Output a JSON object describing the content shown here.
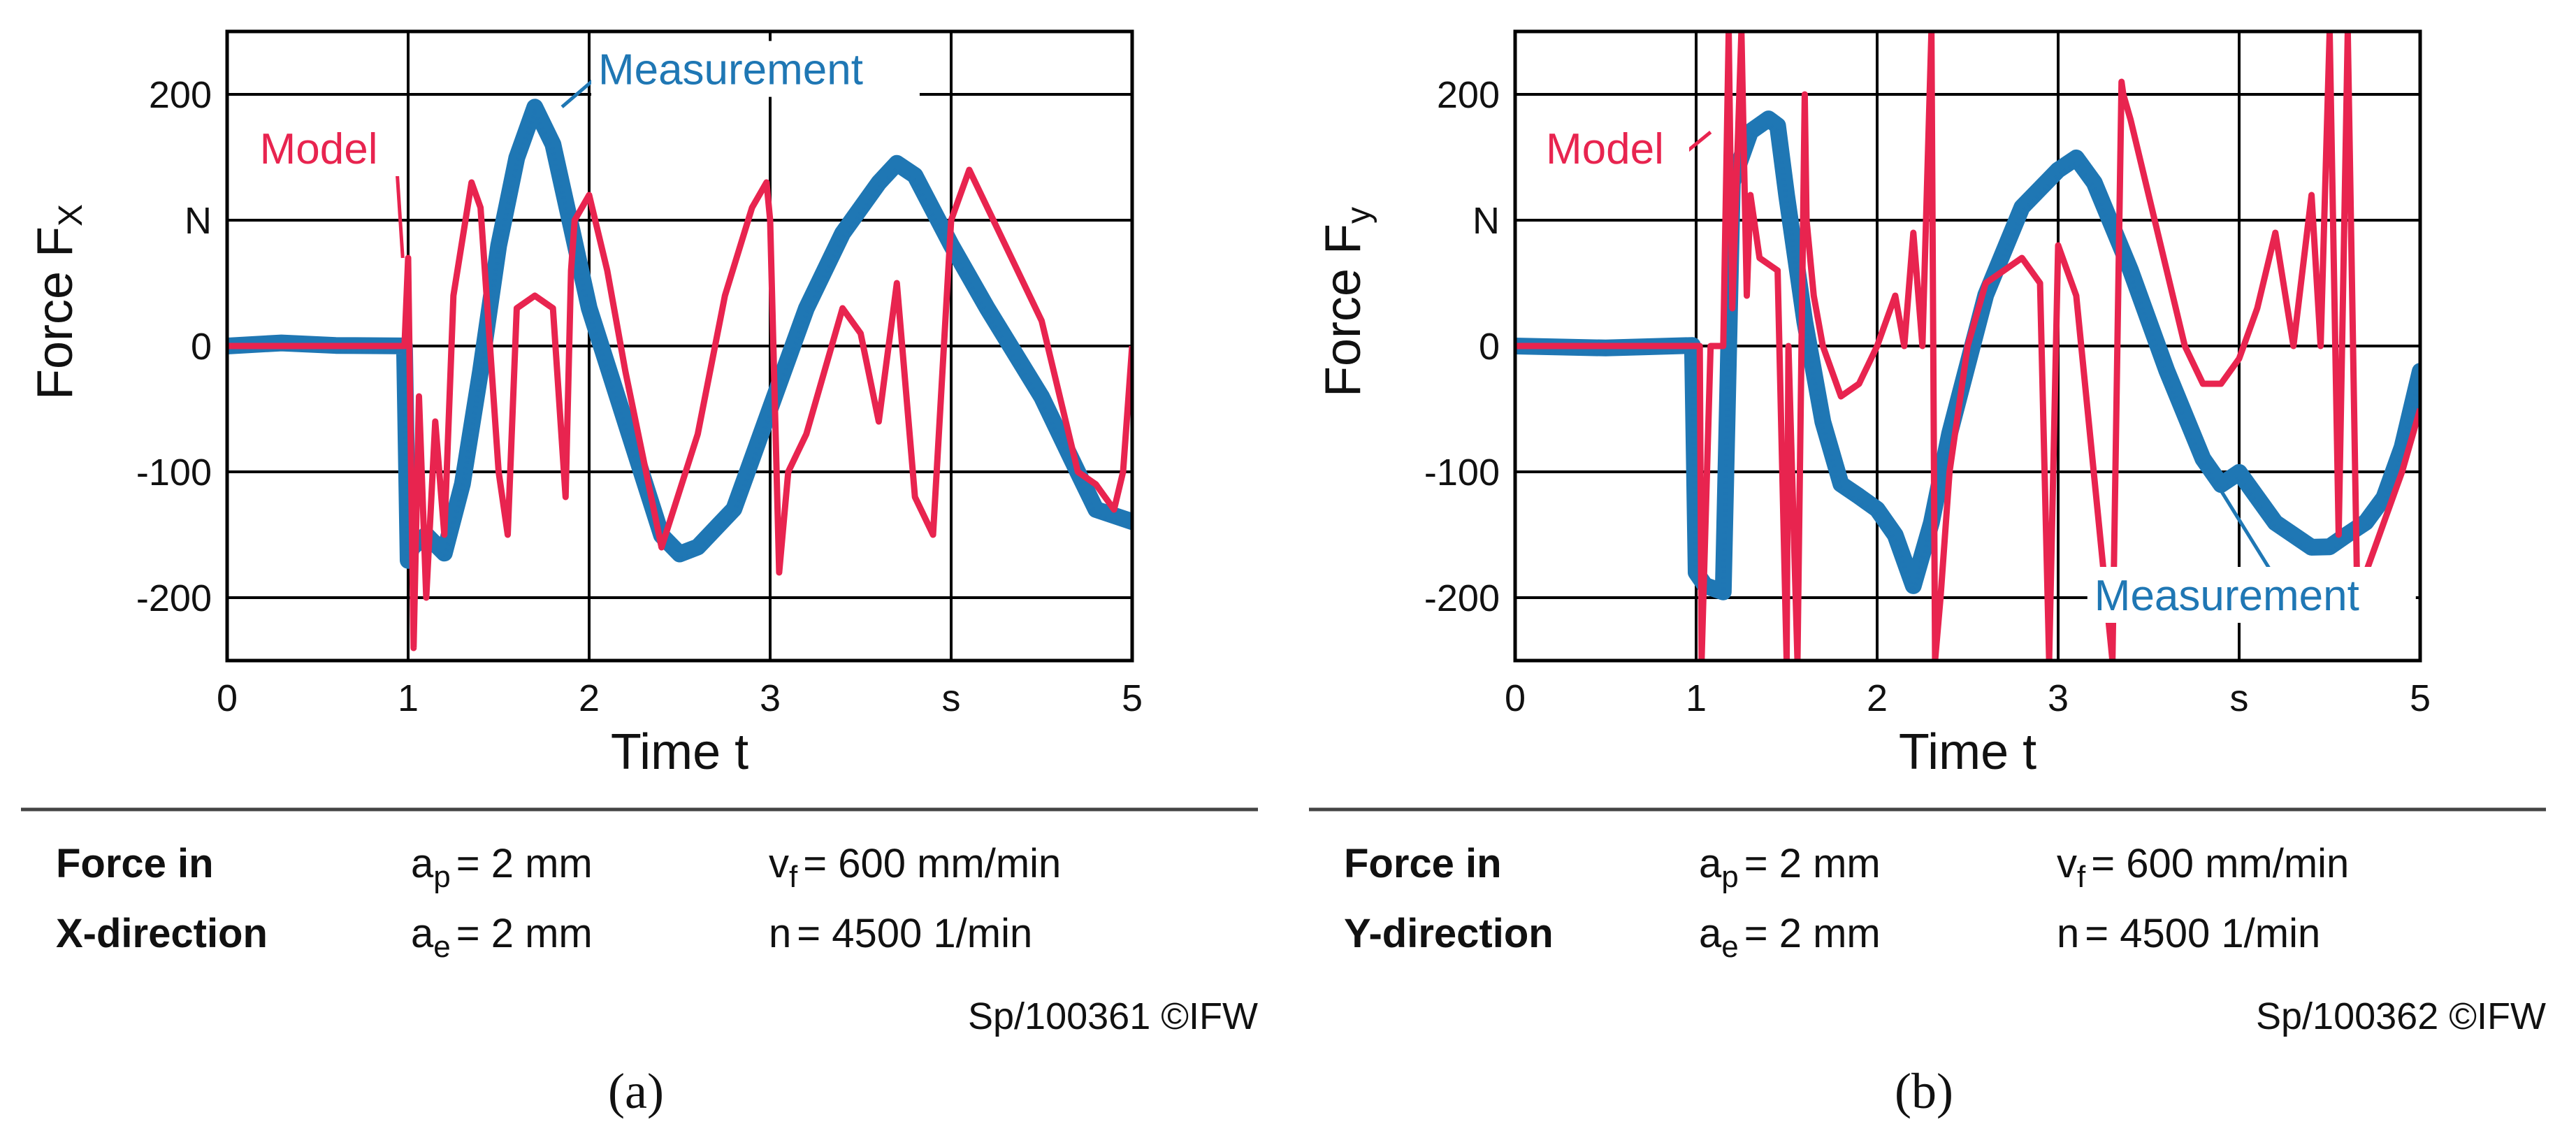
{
  "colors": {
    "measurement": "#1f77b4",
    "model": "#e8244f",
    "grid": "#000000",
    "text": "#111111"
  },
  "chart_data": [
    {
      "type": "line",
      "panel": "(a)",
      "ylabel": "Force F",
      "ylabel_sub": "X",
      "xlabel": "Time t",
      "xlim": [
        0,
        5
      ],
      "ylim": [
        -250,
        250
      ],
      "xticks": [
        0,
        1,
        2,
        3,
        4,
        5
      ],
      "xtick_labels": [
        "0",
        "1",
        "2",
        "3",
        "s",
        "5"
      ],
      "yticks": [
        200,
        100,
        0,
        -100,
        -200
      ],
      "ytick_labels": [
        "200",
        "N",
        "0",
        "-100",
        "-200"
      ],
      "annotations": {
        "measurement": {
          "text": "Measurement",
          "x": 2.05,
          "y": 208,
          "arrow_to": [
            1.85,
            190
          ]
        },
        "model": {
          "text": "Model",
          "x": 0.18,
          "y": 145,
          "arrow_to": [
            0.97,
            70
          ]
        }
      },
      "series": [
        {
          "name": "Measurement",
          "color_key": "measurement",
          "band": 10,
          "x": [
            0,
            0.3,
            0.6,
            0.98,
            1.0,
            1.02,
            1.1,
            1.2,
            1.3,
            1.4,
            1.5,
            1.6,
            1.7,
            1.8,
            1.9,
            2.0,
            2.2,
            2.4,
            2.5,
            2.6,
            2.8,
            3.0,
            3.2,
            3.4,
            3.6,
            3.7,
            3.8,
            4.0,
            4.2,
            4.5,
            4.7,
            4.8,
            5.0
          ],
          "y": [
            0,
            2,
            0,
            0,
            -170,
            -160,
            -150,
            -165,
            -110,
            -20,
            80,
            150,
            190,
            160,
            95,
            30,
            -60,
            -150,
            -165,
            -160,
            -130,
            -50,
            30,
            90,
            130,
            145,
            135,
            80,
            30,
            -40,
            -100,
            -130,
            -140
          ]
        },
        {
          "name": "Model",
          "color_key": "model",
          "band": 0,
          "x": [
            0,
            0.98,
            1.0,
            1.03,
            1.06,
            1.1,
            1.15,
            1.2,
            1.25,
            1.35,
            1.4,
            1.5,
            1.55,
            1.6,
            1.7,
            1.8,
            1.87,
            1.9,
            1.92,
            2.0,
            2.1,
            2.2,
            2.4,
            2.6,
            2.75,
            2.9,
            2.98,
            3.0,
            3.05,
            3.1,
            3.2,
            3.4,
            3.5,
            3.6,
            3.7,
            3.8,
            3.9,
            4.0,
            4.1,
            4.3,
            4.5,
            4.6,
            4.7,
            4.8,
            4.9,
            4.95,
            5.0
          ],
          "y": [
            0,
            0,
            70,
            -240,
            -40,
            -200,
            -60,
            -150,
            40,
            130,
            110,
            -100,
            -150,
            30,
            40,
            30,
            -120,
            60,
            100,
            120,
            60,
            -20,
            -160,
            -70,
            40,
            110,
            130,
            100,
            -180,
            -100,
            -70,
            30,
            10,
            -60,
            50,
            -120,
            -150,
            100,
            140,
            80,
            20,
            -40,
            -100,
            -110,
            -130,
            -100,
            0
          ]
        }
      ],
      "info": {
        "label_line1": "Force in",
        "label_line2": "X-direction",
        "ap_sym": "a",
        "ap_sub": "p",
        "ap_val": "= 2 mm",
        "ae_sym": "a",
        "ae_sub": "e",
        "ae_val": "= 2 mm",
        "vf_sym": "v",
        "vf_sub": "f",
        "vf_val": "= 600 mm/min",
        "n_sym": "n",
        "n_val": "=  4500 1/min",
        "credit": "Sp/100361 ©IFW"
      }
    },
    {
      "type": "line",
      "panel": "(b)",
      "ylabel": "Force F",
      "ylabel_sub": "y",
      "xlabel": "Time t",
      "xlim": [
        0,
        5
      ],
      "ylim": [
        -250,
        250
      ],
      "xticks": [
        0,
        1,
        2,
        3,
        4,
        5
      ],
      "xtick_labels": [
        "0",
        "1",
        "2",
        "3",
        "s",
        "5"
      ],
      "yticks": [
        200,
        100,
        0,
        -100,
        -200
      ],
      "ytick_labels": [
        "200",
        "N",
        "0",
        "-100",
        "-200"
      ],
      "annotations": {
        "measurement": {
          "text": "Measurement",
          "x": 3.2,
          "y": -210,
          "arrow_to": [
            3.9,
            -115
          ]
        },
        "model": {
          "text": "Model",
          "x": 0.17,
          "y": 145,
          "arrow_to": [
            1.08,
            170
          ]
        }
      },
      "series": [
        {
          "name": "Measurement",
          "color_key": "measurement",
          "band": 10,
          "x": [
            0,
            0.5,
            0.98,
            1.0,
            1.05,
            1.15,
            1.2,
            1.3,
            1.4,
            1.45,
            1.5,
            1.6,
            1.7,
            1.8,
            1.9,
            2.0,
            2.1,
            2.2,
            2.3,
            2.4,
            2.6,
            2.8,
            3.0,
            3.1,
            3.2,
            3.4,
            3.6,
            3.8,
            3.9,
            4.0,
            4.2,
            4.4,
            4.5,
            4.6,
            4.7,
            4.8,
            4.9,
            5.0
          ],
          "y": [
            0,
            -2,
            0,
            -180,
            -190,
            -195,
            130,
            170,
            180,
            175,
            120,
            20,
            -60,
            -110,
            -120,
            -130,
            -150,
            -190,
            -140,
            -70,
            40,
            110,
            140,
            150,
            130,
            60,
            -20,
            -90,
            -110,
            -100,
            -140,
            -160,
            -160,
            -150,
            -140,
            -120,
            -80,
            -20
          ]
        },
        {
          "name": "Model",
          "color_key": "model",
          "band": 0,
          "x": [
            0,
            1.02,
            1.03,
            1.08,
            1.15,
            1.18,
            1.2,
            1.25,
            1.28,
            1.3,
            1.35,
            1.45,
            1.5,
            1.51,
            1.56,
            1.6,
            1.61,
            1.65,
            1.7,
            1.8,
            1.9,
            2.0,
            2.1,
            2.15,
            2.2,
            2.25,
            2.3,
            2.32,
            2.35,
            2.4,
            2.5,
            2.6,
            2.7,
            2.8,
            2.9,
            2.95,
            3.0,
            3.05,
            3.1,
            3.3,
            3.35,
            3.36,
            3.4,
            3.5,
            3.6,
            3.7,
            3.8,
            3.9,
            4.0,
            4.1,
            4.2,
            4.3,
            4.4,
            4.45,
            4.5,
            4.55,
            4.6,
            4.65,
            4.7,
            4.75,
            4.8,
            4.9,
            5.0
          ],
          "y": [
            0,
            0,
            -250,
            0,
            0,
            250,
            30,
            250,
            40,
            120,
            70,
            60,
            -250,
            0,
            -250,
            200,
            100,
            40,
            0,
            -40,
            -30,
            0,
            40,
            0,
            90,
            0,
            250,
            -250,
            -200,
            -100,
            0,
            50,
            60,
            70,
            50,
            -250,
            80,
            60,
            40,
            -250,
            210,
            200,
            180,
            120,
            60,
            0,
            -30,
            -30,
            -10,
            30,
            90,
            0,
            120,
            0,
            250,
            -150,
            250,
            -180,
            -180,
            -160,
            -140,
            -100,
            -50
          ]
        }
      ],
      "info": {
        "label_line1": "Force in",
        "label_line2": "Y-direction",
        "ap_sym": "a",
        "ap_sub": "p",
        "ap_val": "= 2 mm",
        "ae_sym": "a",
        "ae_sub": "e",
        "ae_val": "= 2 mm",
        "vf_sym": "v",
        "vf_sub": "f",
        "vf_val": "= 600 mm/min",
        "n_sym": "n",
        "n_val": "=  4500 1/min",
        "credit": "Sp/100362 ©IFW"
      }
    }
  ]
}
